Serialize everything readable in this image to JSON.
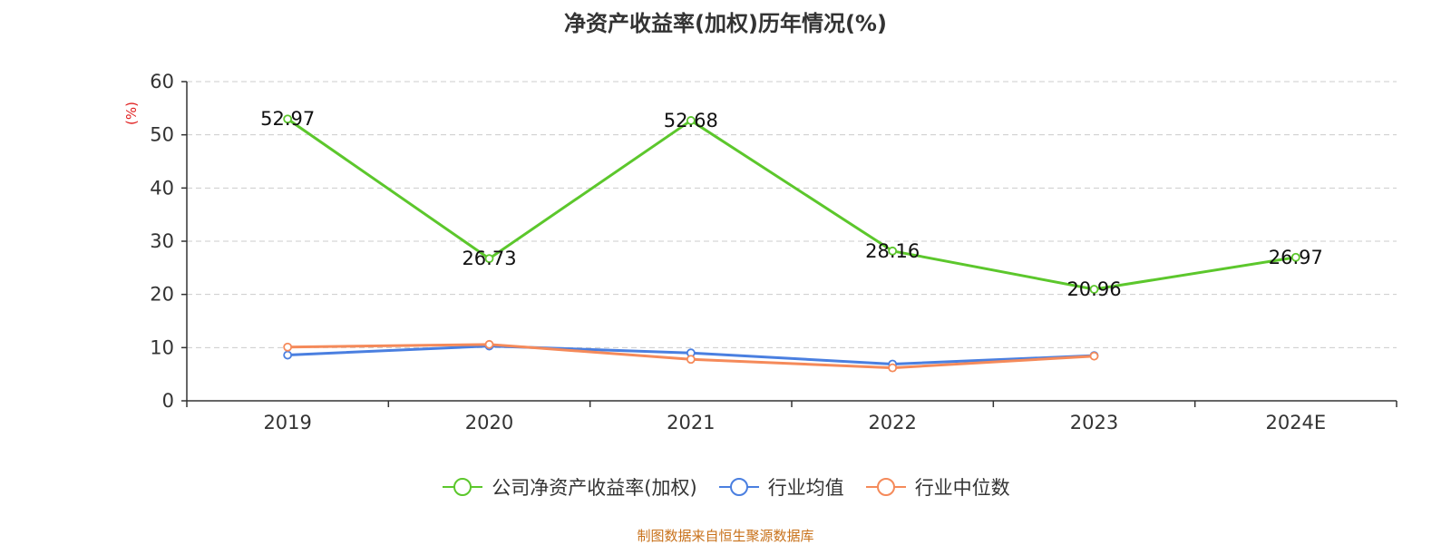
{
  "chart_data": {
    "type": "line",
    "title": "净资产收益率(加权)历年情况(%)",
    "ylabel": "(%)",
    "categories": [
      "2019",
      "2020",
      "2021",
      "2022",
      "2023",
      "2024E"
    ],
    "ylim": [
      0,
      60
    ],
    "yticks": [
      0,
      10,
      20,
      30,
      40,
      50,
      60
    ],
    "grid": true,
    "legend_position": "bottom",
    "series": [
      {
        "name": "公司净资产收益率(加权)",
        "color": "#5cc72c",
        "values": [
          52.97,
          26.73,
          52.68,
          28.16,
          20.96,
          26.97
        ],
        "labels": [
          "52.97",
          "26.73",
          "52.68",
          "28.16",
          "20.96",
          "26.97"
        ]
      },
      {
        "name": "行业均值",
        "color": "#4a7fe0",
        "values": [
          8.6,
          10.3,
          9.0,
          6.9,
          8.5,
          null
        ]
      },
      {
        "name": "行业中位数",
        "color": "#f58a5a",
        "values": [
          10.1,
          10.6,
          7.8,
          6.2,
          8.4,
          null
        ]
      }
    ]
  },
  "footer": {
    "source": "制图数据来自恒生聚源数据库"
  },
  "colors": {
    "axis": "#333333",
    "grid": "#cccccc",
    "ylabel": "#e02020",
    "source": "#c8711a"
  }
}
